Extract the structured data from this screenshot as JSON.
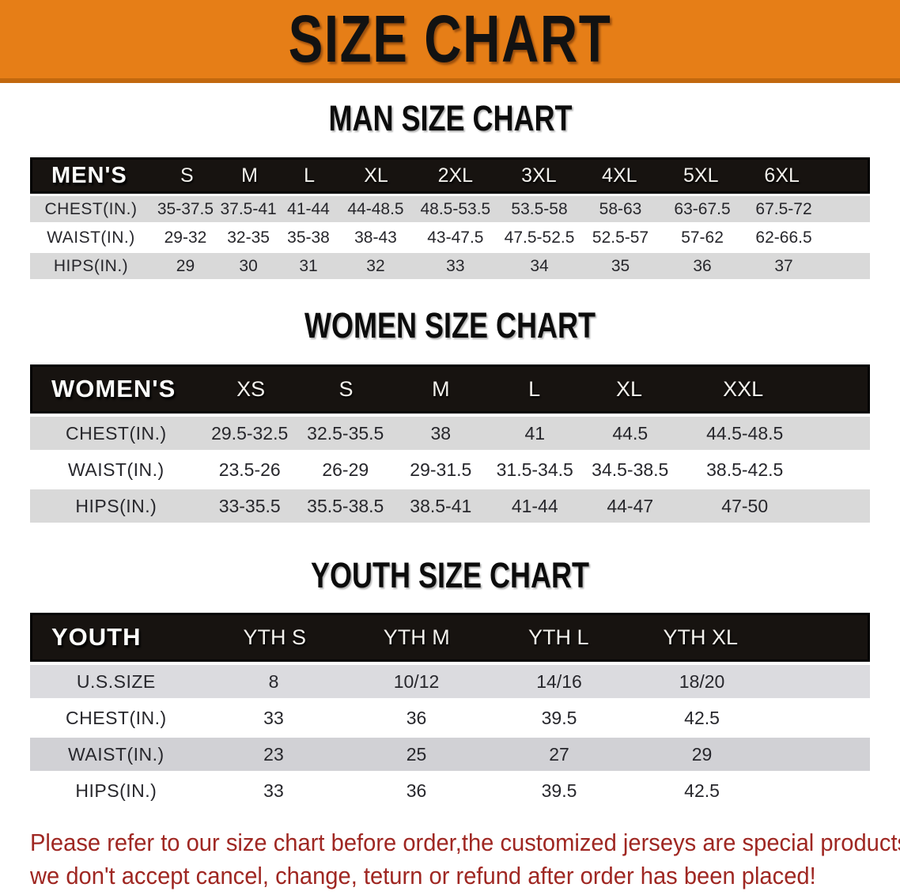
{
  "banner": {
    "title": "SIZE CHART",
    "bg_color": "#e67e17"
  },
  "men": {
    "section_title": "MAN SIZE CHART",
    "header_label": "MEN'S",
    "sizes": [
      "S",
      "M",
      "L",
      "XL",
      "2XL",
      "3XL",
      "4XL",
      "5XL",
      "6XL"
    ],
    "rows": [
      {
        "label": "CHEST(IN.)",
        "values": [
          "35-37.5",
          "37.5-41",
          "41-44",
          "44-48.5",
          "48.5-53.5",
          "53.5-58",
          "58-63",
          "63-67.5",
          "67.5-72"
        ]
      },
      {
        "label": "WAIST(IN.)",
        "values": [
          "29-32",
          "32-35",
          "35-38",
          "38-43",
          "43-47.5",
          "47.5-52.5",
          "52.5-57",
          "57-62",
          "62-66.5"
        ]
      },
      {
        "label": "HIPS(IN.)",
        "values": [
          "29",
          "30",
          "31",
          "32",
          "33",
          "34",
          "35",
          "36",
          "37"
        ]
      }
    ]
  },
  "women": {
    "section_title": "WOMEN SIZE CHART",
    "header_label": "WOMEN'S",
    "sizes": [
      "XS",
      "S",
      "M",
      "L",
      "XL",
      "XXL"
    ],
    "rows": [
      {
        "label": "CHEST(IN.)",
        "values": [
          "29.5-32.5",
          "32.5-35.5",
          "38",
          "41",
          "44.5",
          "44.5-48.5"
        ]
      },
      {
        "label": "WAIST(IN.)",
        "values": [
          "23.5-26",
          "26-29",
          "29-31.5",
          "31.5-34.5",
          "34.5-38.5",
          "38.5-42.5"
        ]
      },
      {
        "label": "HIPS(IN.)",
        "values": [
          "33-35.5",
          "35.5-38.5",
          "38.5-41",
          "41-44",
          "44-47",
          "47-50"
        ]
      }
    ]
  },
  "youth": {
    "section_title": "YOUTH SIZE CHART",
    "header_label": "YOUTH",
    "sizes": [
      "YTH S",
      "YTH M",
      "YTH L",
      "YTH XL"
    ],
    "rows": [
      {
        "label": "U.S.SIZE",
        "values": [
          "8",
          "10/12",
          "14/16",
          "18/20"
        ]
      },
      {
        "label": "CHEST(IN.)",
        "values": [
          "33",
          "36",
          "39.5",
          "42.5"
        ]
      },
      {
        "label": "WAIST(IN.)",
        "values": [
          "23",
          "25",
          "27",
          "29"
        ]
      },
      {
        "label": "HIPS(IN.)",
        "values": [
          "33",
          "36",
          "39.5",
          "42.5"
        ]
      }
    ]
  },
  "footer": {
    "color": "#9f2722",
    "lines": [
      "Please refer to our size chart before order,the customized jerseys are special products,",
      "we don't accept cancel, change, teturn or refund after order has been placed!"
    ]
  }
}
